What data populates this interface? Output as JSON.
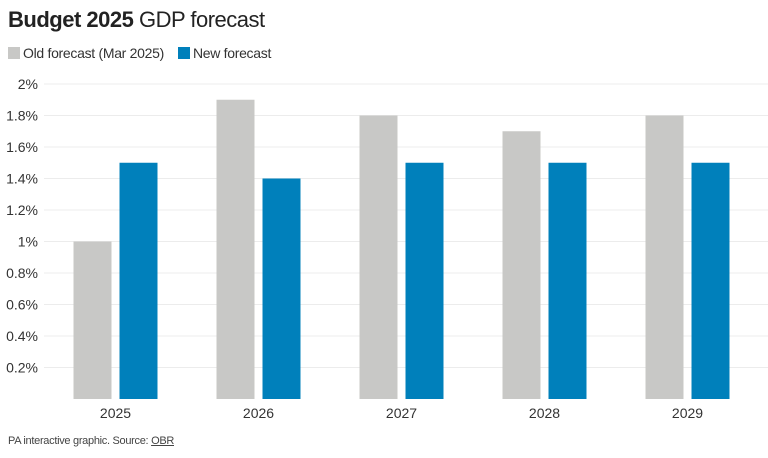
{
  "title": {
    "bold": "Budget 2025",
    "rest": "GDP forecast"
  },
  "footer": {
    "text": "PA interactive graphic. Source: ",
    "link": "OBR"
  },
  "chart_data": {
    "type": "bar",
    "categories": [
      "2025",
      "2026",
      "2027",
      "2028",
      "2029"
    ],
    "series": [
      {
        "name": "Old forecast (Mar 2025)",
        "color": "#c8c8c6",
        "values": [
          1.0,
          1.9,
          1.8,
          1.7,
          1.8
        ]
      },
      {
        "name": "New forecast",
        "color": "#0080bb",
        "values": [
          1.5,
          1.4,
          1.5,
          1.5,
          1.5
        ]
      }
    ],
    "ylim": [
      0,
      2
    ],
    "yticks": [
      0.2,
      0.4,
      0.6,
      0.8,
      1,
      1.2,
      1.4,
      1.6,
      1.8,
      2
    ],
    "ytick_labels": [
      "0.2%",
      "0.4%",
      "0.6%",
      "0.8%",
      "1%",
      "1.2%",
      "1.4%",
      "1.6%",
      "1.8%",
      "2%"
    ],
    "grid": true,
    "legend": "top-left"
  }
}
